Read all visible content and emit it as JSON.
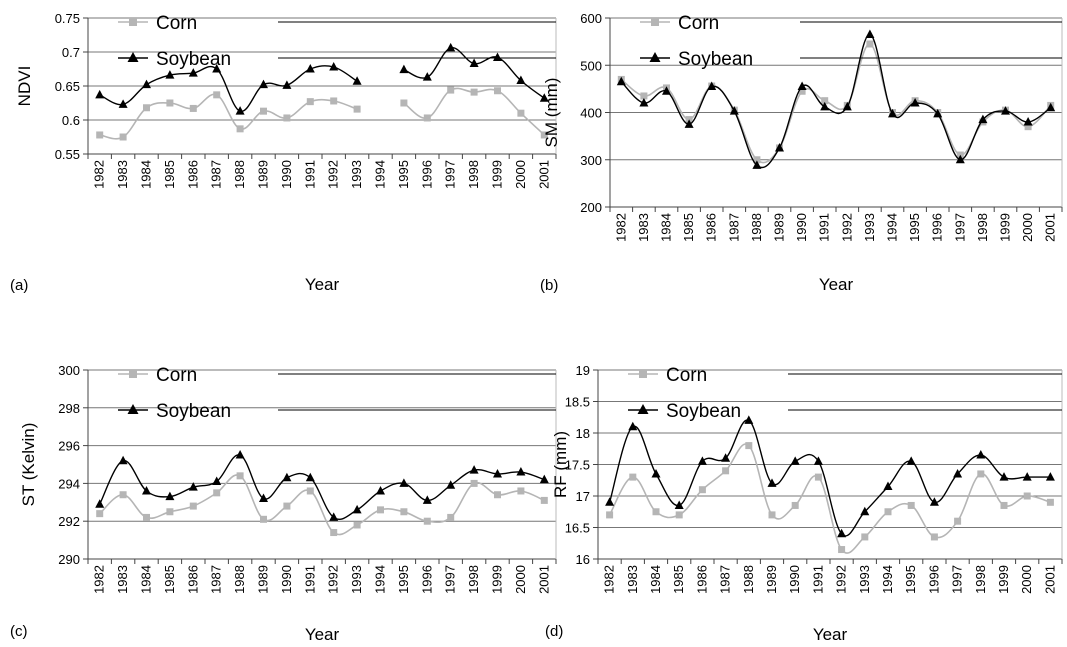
{
  "colors": {
    "corn": "#b5b5b5",
    "soybean": "#000000",
    "grid": "#777777",
    "axis": "#444444"
  },
  "chart_data": [
    {
      "type": "line",
      "panel_label": "(a)",
      "xlabel": "Year",
      "ylabel": "NDVI",
      "ylim": [
        0.55,
        0.75
      ],
      "yticks": [
        0.55,
        0.6,
        0.65,
        0.7,
        0.75
      ],
      "ytick_labels": [
        "0.55",
        "0.6",
        "0.65",
        "0.7",
        "0.75"
      ],
      "categories": [
        "1982",
        "1983",
        "1984",
        "1985",
        "1986",
        "1987",
        "1988",
        "1989",
        "1990",
        "1991",
        "1992",
        "1993",
        "1994",
        "1995",
        "1996",
        "1997",
        "1998",
        "1999",
        "2000",
        "2001"
      ],
      "grid": true,
      "legend": "top-left",
      "series": [
        {
          "name": "Corn",
          "marker": "square",
          "values": [
            0.578,
            0.575,
            0.618,
            0.625,
            0.617,
            0.637,
            0.587,
            0.613,
            0.603,
            0.627,
            0.628,
            0.616,
            null,
            0.625,
            0.603,
            0.644,
            0.641,
            0.643,
            0.61,
            0.578
          ]
        },
        {
          "name": "Soybean",
          "marker": "triangle",
          "values": [
            0.637,
            0.623,
            0.652,
            0.666,
            0.669,
            0.675,
            0.613,
            0.652,
            0.651,
            0.675,
            0.678,
            0.657,
            null,
            0.674,
            0.663,
            0.706,
            0.683,
            0.692,
            0.658,
            0.632
          ]
        }
      ]
    },
    {
      "type": "line",
      "panel_label": "(b)",
      "xlabel": "Year",
      "ylabel": "SM (mm)",
      "ylim": [
        200,
        600
      ],
      "yticks": [
        200,
        300,
        400,
        500,
        600
      ],
      "ytick_labels": [
        "200",
        "300",
        "400",
        "500",
        "600"
      ],
      "categories": [
        "1982",
        "1983",
        "1984",
        "1985",
        "1986",
        "1987",
        "1988",
        "1989",
        "1990",
        "1991",
        "1992",
        "1993",
        "1994",
        "1995",
        "1996",
        "1997",
        "1998",
        "1999",
        "2000",
        "2001"
      ],
      "grid": true,
      "legend": "top-left",
      "series": [
        {
          "name": "Corn",
          "marker": "square",
          "values": [
            470,
            435,
            452,
            385,
            456,
            405,
            300,
            325,
            445,
            425,
            415,
            545,
            400,
            425,
            400,
            310,
            380,
            405,
            370,
            415
          ]
        },
        {
          "name": "Soybean",
          "marker": "triangle",
          "values": [
            465,
            420,
            445,
            375,
            455,
            403,
            288,
            325,
            455,
            412,
            412,
            565,
            397,
            420,
            397,
            300,
            385,
            403,
            380,
            410
          ]
        }
      ]
    },
    {
      "type": "line",
      "panel_label": "(c)",
      "xlabel": "Year",
      "ylabel": "ST (Kelvin)",
      "ylim": [
        290,
        300
      ],
      "yticks": [
        290,
        292,
        294,
        296,
        298,
        300
      ],
      "ytick_labels": [
        "290",
        "292",
        "294",
        "296",
        "298",
        "300"
      ],
      "categories": [
        "1982",
        "1983",
        "1984",
        "1985",
        "1986",
        "1987",
        "1988",
        "1989",
        "1990",
        "1991",
        "1992",
        "1993",
        "1994",
        "1995",
        "1996",
        "1997",
        "1998",
        "1999",
        "2000",
        "2001"
      ],
      "grid": true,
      "legend": "top-left",
      "series": [
        {
          "name": "Corn",
          "marker": "square",
          "values": [
            292.4,
            293.4,
            292.2,
            292.5,
            292.8,
            293.5,
            294.4,
            292.1,
            292.8,
            293.6,
            291.4,
            291.8,
            292.6,
            292.5,
            292.0,
            292.2,
            294.0,
            293.4,
            293.6,
            293.1
          ]
        },
        {
          "name": "Soybean",
          "marker": "triangle",
          "values": [
            292.9,
            295.2,
            293.6,
            293.3,
            293.8,
            294.1,
            295.5,
            293.2,
            294.3,
            294.3,
            292.2,
            292.6,
            293.6,
            294.0,
            293.1,
            293.9,
            294.7,
            294.5,
            294.6,
            294.2
          ]
        }
      ]
    },
    {
      "type": "line",
      "panel_label": "(d)",
      "xlabel": "Year",
      "ylabel": "RF (mm)",
      "ylim": [
        16,
        19
      ],
      "yticks": [
        16,
        16.5,
        17,
        17.5,
        18,
        18.5,
        19
      ],
      "ytick_labels": [
        "16",
        "16.5",
        "17",
        "17.5",
        "18",
        "18.5",
        "19"
      ],
      "categories": [
        "1982",
        "1983",
        "1984",
        "1985",
        "1986",
        "1987",
        "1988",
        "1989",
        "1990",
        "1991",
        "1992",
        "1993",
        "1994",
        "1995",
        "1996",
        "1997",
        "1998",
        "1999",
        "2000",
        "2001"
      ],
      "grid": true,
      "legend": "top-left",
      "series": [
        {
          "name": "Corn",
          "marker": "square",
          "values": [
            16.7,
            17.3,
            16.75,
            16.7,
            17.1,
            17.4,
            17.8,
            16.7,
            16.85,
            17.3,
            16.15,
            16.35,
            16.75,
            16.85,
            16.35,
            16.6,
            17.35,
            16.85,
            17.0,
            16.9
          ]
        },
        {
          "name": "Soybean",
          "marker": "triangle",
          "values": [
            16.9,
            18.1,
            17.35,
            16.85,
            17.55,
            17.6,
            18.2,
            17.2,
            17.55,
            17.55,
            16.4,
            16.75,
            17.15,
            17.55,
            16.9,
            17.35,
            17.65,
            17.3,
            17.3,
            17.3
          ]
        }
      ]
    }
  ]
}
